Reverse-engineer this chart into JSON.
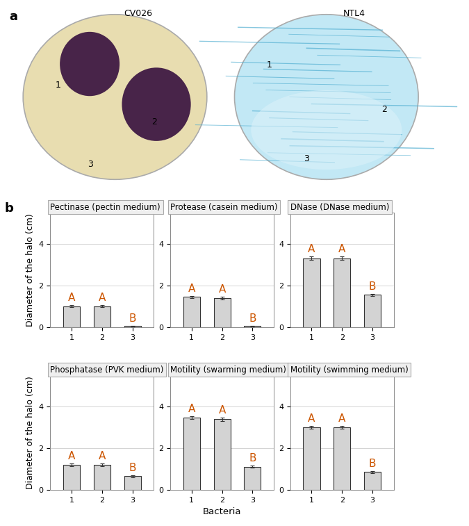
{
  "panel_a_label": "a",
  "panel_b_label": "b",
  "cv026_label": "CV026",
  "ntl4_label": "NTL4",
  "subplots": [
    {
      "title": "Pectinase (pectin medium)",
      "bars": [
        1.0,
        1.0,
        0.05
      ],
      "errors": [
        0.05,
        0.05,
        0.02
      ],
      "letters": [
        "A",
        "A",
        "B"
      ],
      "ylim": [
        0,
        5.5
      ],
      "yticks": [
        0,
        2,
        4
      ]
    },
    {
      "title": "Protease (casein medium)",
      "bars": [
        1.45,
        1.4,
        0.05
      ],
      "errors": [
        0.06,
        0.06,
        0.02
      ],
      "letters": [
        "A",
        "A",
        "B"
      ],
      "ylim": [
        0,
        5.5
      ],
      "yticks": [
        0,
        2,
        4
      ]
    },
    {
      "title": "DNase (DNase medium)",
      "bars": [
        3.3,
        3.3,
        1.55
      ],
      "errors": [
        0.08,
        0.08,
        0.06
      ],
      "letters": [
        "A",
        "A",
        "B"
      ],
      "ylim": [
        0,
        5.5
      ],
      "yticks": [
        0,
        2,
        4
      ]
    },
    {
      "title": "Phosphatase (PVK medium)",
      "bars": [
        1.2,
        1.2,
        0.65
      ],
      "errors": [
        0.07,
        0.07,
        0.05
      ],
      "letters": [
        "A",
        "A",
        "B"
      ],
      "ylim": [
        0,
        5.5
      ],
      "yticks": [
        0,
        2,
        4
      ]
    },
    {
      "title": "Motility (swarming medium)",
      "bars": [
        3.45,
        3.38,
        1.1
      ],
      "errors": [
        0.07,
        0.07,
        0.05
      ],
      "letters": [
        "A",
        "A",
        "B"
      ],
      "ylim": [
        0,
        5.5
      ],
      "yticks": [
        0,
        2,
        4
      ]
    },
    {
      "title": "Motility (swimming medium)",
      "bars": [
        3.0,
        3.0,
        0.85
      ],
      "errors": [
        0.07,
        0.07,
        0.05
      ],
      "letters": [
        "A",
        "A",
        "B"
      ],
      "ylim": [
        0,
        5.5
      ],
      "yticks": [
        0,
        2,
        4
      ]
    }
  ],
  "bar_color": "#d3d3d3",
  "bar_edge_color": "#333333",
  "error_color": "#333333",
  "letter_color": "#cc5500",
  "grid_color": "#cccccc",
  "panel_bg": "#efefef",
  "plot_bg": "#ffffff",
  "xlabel": "Bacteria",
  "ylabel": "Diameter of the halo (cm)",
  "xtick_labels": [
    "1",
    "2",
    "3"
  ],
  "bar_width": 0.55,
  "title_fontsize": 8.5,
  "tick_fontsize": 8,
  "label_fontsize": 9,
  "letter_fontsize": 11
}
